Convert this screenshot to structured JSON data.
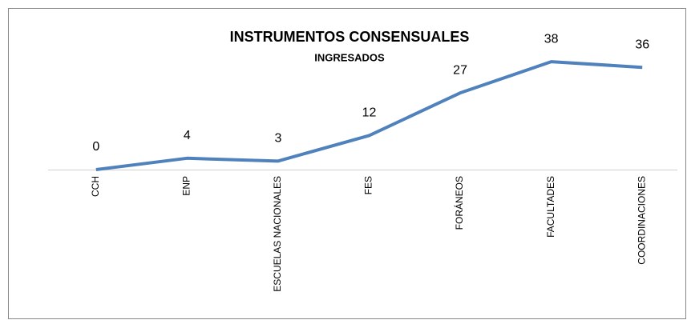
{
  "chart_data": {
    "type": "line",
    "title": "INSTRUMENTOS CONSENSUALES",
    "subtitle": "INGRESADOS",
    "categories": [
      "CCH",
      "ENP",
      "ESCUELAS NACIONALES",
      "FES",
      "FORÁNEOS",
      "FACULTADES",
      "COORDINACIONES"
    ],
    "series": [
      {
        "name": "Ingresados",
        "color": "#4f81bd",
        "values": [
          0,
          4,
          3,
          12,
          27,
          38,
          36
        ]
      }
    ],
    "ylim": [
      0,
      40
    ]
  }
}
